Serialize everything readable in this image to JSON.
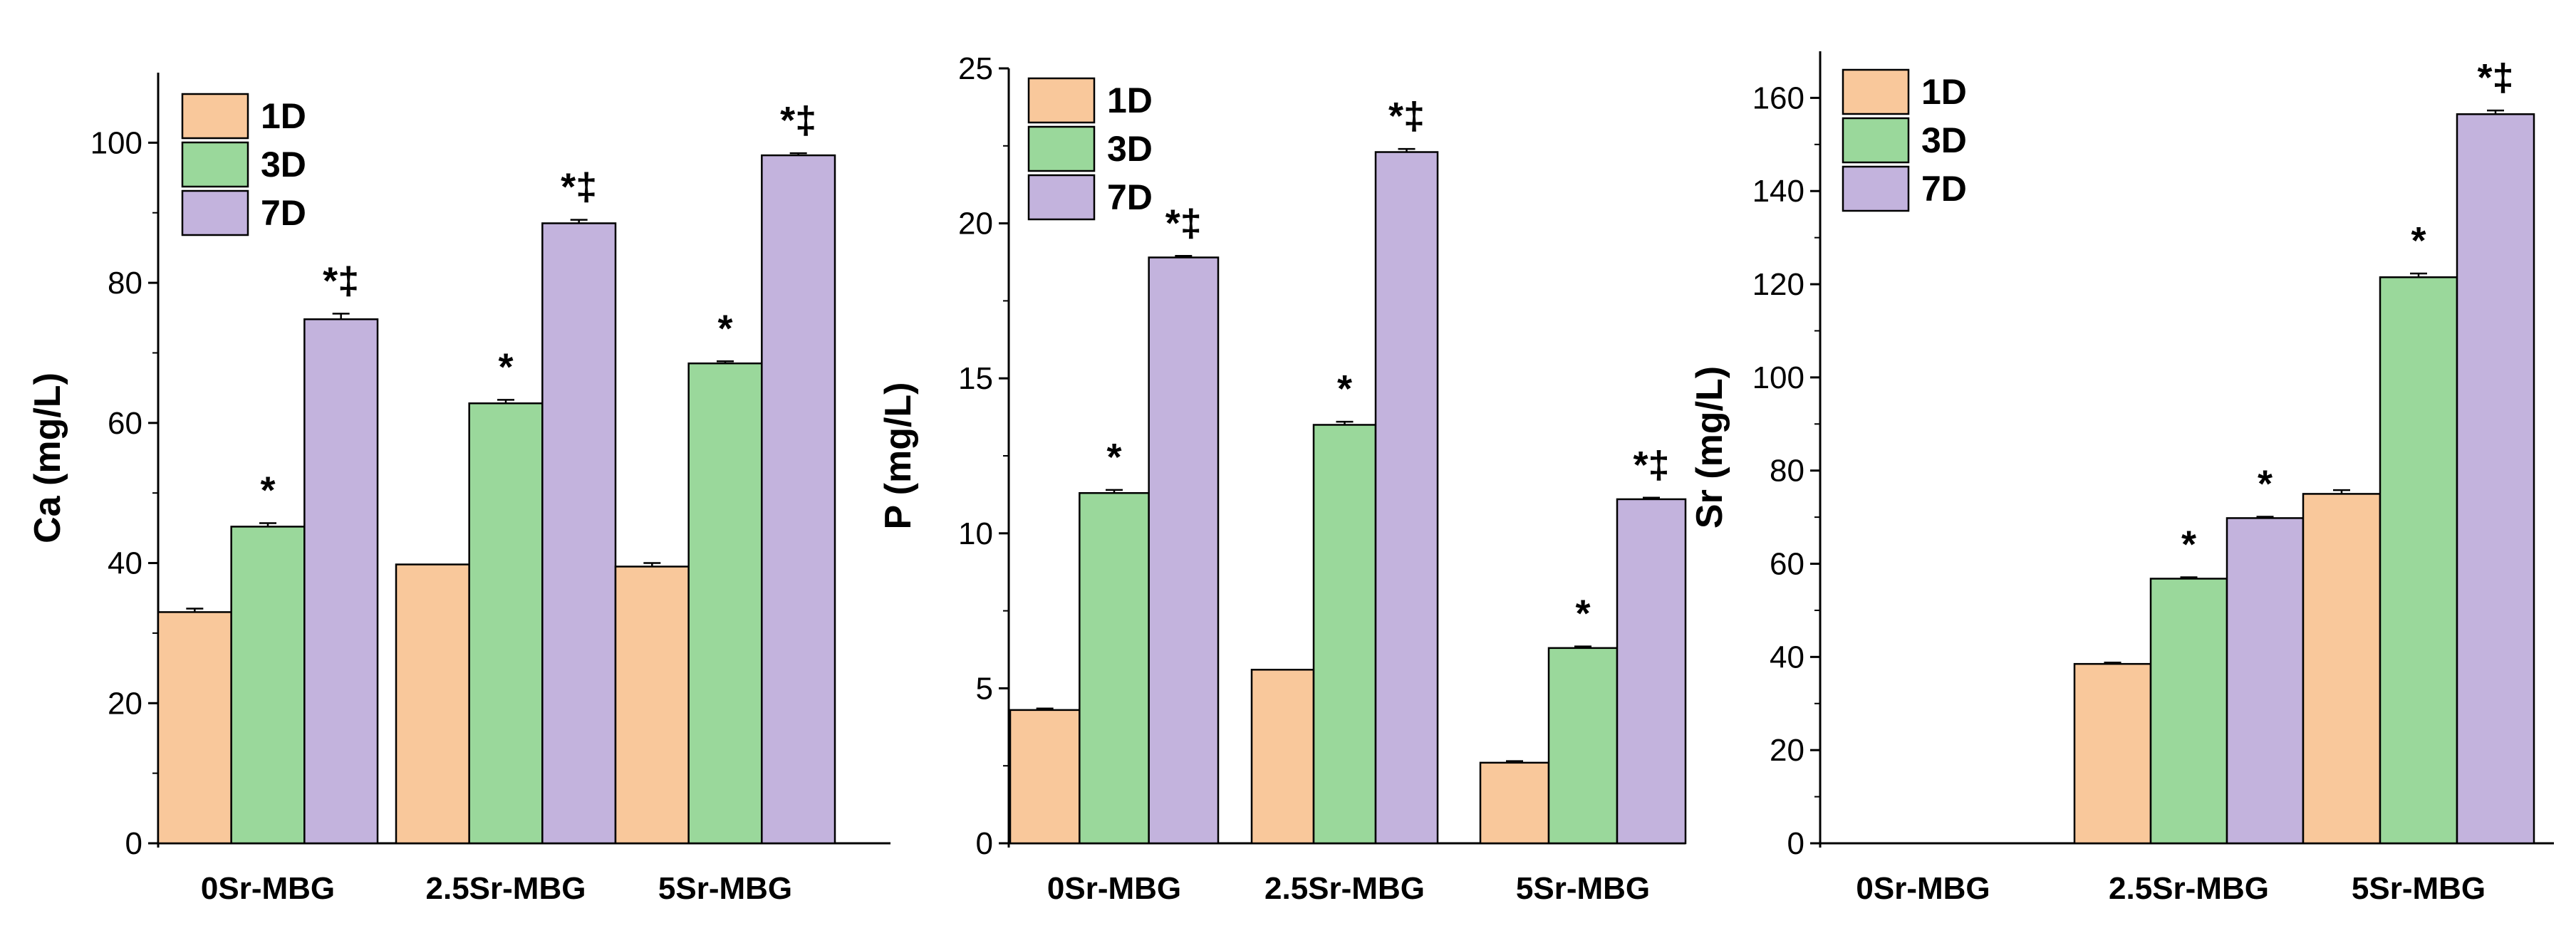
{
  "chart_data": [
    {
      "type": "bar",
      "ylabel": "Ca (mg/L)",
      "xlabel": "",
      "ylim": [
        0,
        110
      ],
      "yticks": [
        0,
        20,
        40,
        60,
        80,
        100
      ],
      "categories": [
        "0Sr-MBG",
        "2.5Sr-MBG",
        "5Sr-MBG"
      ],
      "legend_position": "top-left",
      "series": [
        {
          "name": "1D",
          "color": "#f9c89b",
          "values": [
            33,
            39.8,
            39.5
          ],
          "errors": [
            0.5,
            0,
            0.5
          ],
          "annotations": [
            "",
            "",
            ""
          ]
        },
        {
          "name": "3D",
          "color": "#9ad89b",
          "values": [
            45.2,
            62.8,
            68.5
          ],
          "errors": [
            0.5,
            0.5,
            0.3
          ],
          "annotations": [
            "*",
            "*",
            "*"
          ]
        },
        {
          "name": "7D",
          "color": "#c3b3dd",
          "values": [
            74.8,
            88.5,
            98.2
          ],
          "errors": [
            0.8,
            0.5,
            0.3
          ],
          "annotations": [
            "*‡",
            "*‡",
            "*‡"
          ]
        }
      ]
    },
    {
      "type": "bar",
      "ylabel": "P (mg/L)",
      "xlabel": "",
      "ylim": [
        0,
        25
      ],
      "yticks": [
        0,
        5,
        10,
        15,
        20,
        25
      ],
      "categories": [
        "0Sr-MBG",
        "2.5Sr-MBG",
        "5Sr-MBG"
      ],
      "legend_position": "top-left",
      "series": [
        {
          "name": "1D",
          "color": "#f9c89b",
          "values": [
            4.3,
            5.6,
            2.6
          ],
          "errors": [
            0.05,
            0,
            0.05
          ],
          "annotations": [
            "",
            "",
            ""
          ]
        },
        {
          "name": "3D",
          "color": "#9ad89b",
          "values": [
            11.3,
            13.5,
            6.3
          ],
          "errors": [
            0.1,
            0.1,
            0.05
          ],
          "annotations": [
            "*",
            "*",
            "*"
          ]
        },
        {
          "name": "7D",
          "color": "#c3b3dd",
          "values": [
            18.9,
            22.3,
            11.1
          ],
          "errors": [
            0.05,
            0.1,
            0.05
          ],
          "annotations": [
            "*‡",
            "*‡",
            "*‡"
          ]
        }
      ]
    },
    {
      "type": "bar",
      "ylabel": "Sr (mg/L)",
      "xlabel": "",
      "ylim": [
        0,
        170
      ],
      "yticks": [
        0,
        20,
        40,
        60,
        80,
        100,
        120,
        140,
        160
      ],
      "categories": [
        "0Sr-MBG",
        "2.5Sr-MBG",
        "5Sr-MBG"
      ],
      "legend_position": "top-left",
      "series": [
        {
          "name": "1D",
          "color": "#f9c89b",
          "values": [
            0,
            38.5,
            75
          ],
          "errors": [
            0,
            0.3,
            0.8
          ],
          "annotations": [
            "",
            "",
            ""
          ]
        },
        {
          "name": "3D",
          "color": "#9ad89b",
          "values": [
            0,
            56.8,
            121.5
          ],
          "errors": [
            0,
            0.3,
            0.8
          ],
          "annotations": [
            "",
            "*",
            "*"
          ]
        },
        {
          "name": "7D",
          "color": "#c3b3dd",
          "values": [
            0,
            69.8,
            156.5
          ],
          "errors": [
            0,
            0.3,
            0.8
          ],
          "annotations": [
            "",
            "*",
            "*‡"
          ]
        }
      ]
    }
  ]
}
